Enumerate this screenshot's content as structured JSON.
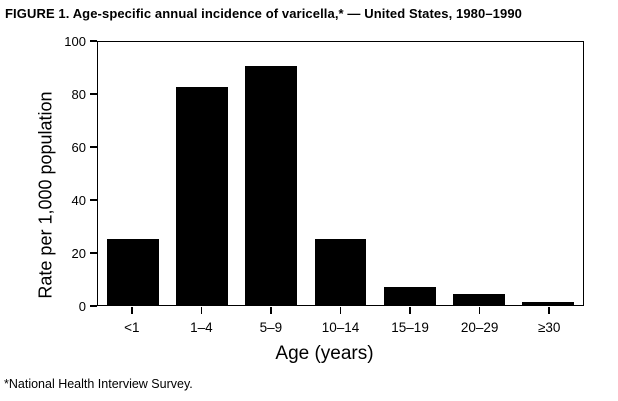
{
  "title": "FIGURE 1. Age-specific annual incidence of varicella,* — United States, 1980–1990",
  "footnote": "*National Health Interview Survey.",
  "colors": {
    "bar": "#000000",
    "axis": "#000000",
    "background": "#ffffff",
    "text": "#000000"
  },
  "chart_data": {
    "type": "bar",
    "categories": [
      "<1",
      "1–4",
      "5–9",
      "10–14",
      "15–19",
      "20–29",
      "≥30"
    ],
    "values": [
      25,
      83,
      91,
      25,
      7,
      4,
      1
    ],
    "title": "FIGURE 1. Age-specific annual incidence of varicella,* — United States, 1980–1990",
    "xlabel": "Age (years)",
    "ylabel": "Rate per 1,000 population",
    "ylim": [
      0,
      100
    ],
    "yticks": [
      0,
      20,
      40,
      60,
      80,
      100
    ],
    "grid": false,
    "legend": false,
    "bar_color": "#000000"
  }
}
